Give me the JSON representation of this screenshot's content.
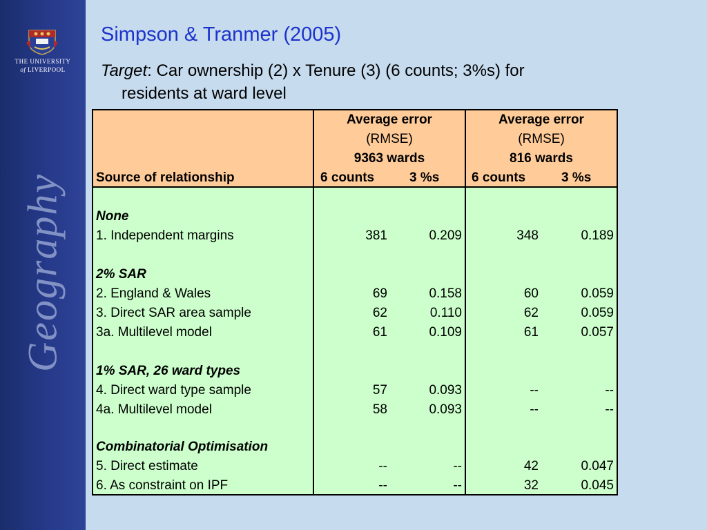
{
  "sidebar": {
    "university_line1": "THE UNIVERSITY",
    "university_line2_of": "of",
    "university_line2_name": "LIVERPOOL",
    "crest_motto": "MAGNA",
    "department": "Geography"
  },
  "title": "Simpson & Tranmer (2005)",
  "subtitle": {
    "target_label": "Target",
    "text_line1": ":  Car ownership (2) x Tenure (3) (6 counts; 3%s) for",
    "text_line2": "residents at ward level"
  },
  "table": {
    "header": {
      "group1_line1": "Average error",
      "group1_line2": "(RMSE)",
      "group1_line3": "9363 wards",
      "group2_line1": "Average error",
      "group2_line2": "(RMSE)",
      "group2_line3": "816 wards",
      "source_label": "Source of relationship",
      "col_counts": "6 counts",
      "col_pct": "3 %s",
      "col_counts2": "6 counts",
      "col_pct2": "3 %s"
    },
    "sections": [
      {
        "title": "None",
        "rows": [
          {
            "label": "1. Independent margins",
            "v": [
              "381",
              "0.209",
              "348",
              "0.189"
            ]
          }
        ]
      },
      {
        "title": "2% SAR",
        "rows": [
          {
            "label": "2. England & Wales",
            "v": [
              "69",
              "0.158",
              "60",
              "0.059"
            ]
          },
          {
            "label": "3. Direct SAR area sample",
            "v": [
              "62",
              "0.110",
              "62",
              "0.059"
            ]
          },
          {
            "label": "3a. Multilevel model",
            "v": [
              "61",
              "0.109",
              "61",
              "0.057"
            ]
          }
        ]
      },
      {
        "title": "1% SAR, 26 ward types",
        "rows": [
          {
            "label": "4. Direct ward type sample",
            "v": [
              "57",
              "0.093",
              "--",
              "--"
            ]
          },
          {
            "label": "4a. Multilevel model",
            "v": [
              "58",
              "0.093",
              "--",
              "--"
            ]
          }
        ]
      },
      {
        "title": "Combinatorial Optimisation",
        "rows": [
          {
            "label": "5. Direct estimate",
            "v": [
              "--",
              "--",
              "42",
              "0.047"
            ]
          },
          {
            "label": "6. As constraint on IPF",
            "v": [
              "--",
              "--",
              "32",
              "0.045"
            ]
          }
        ]
      }
    ]
  }
}
